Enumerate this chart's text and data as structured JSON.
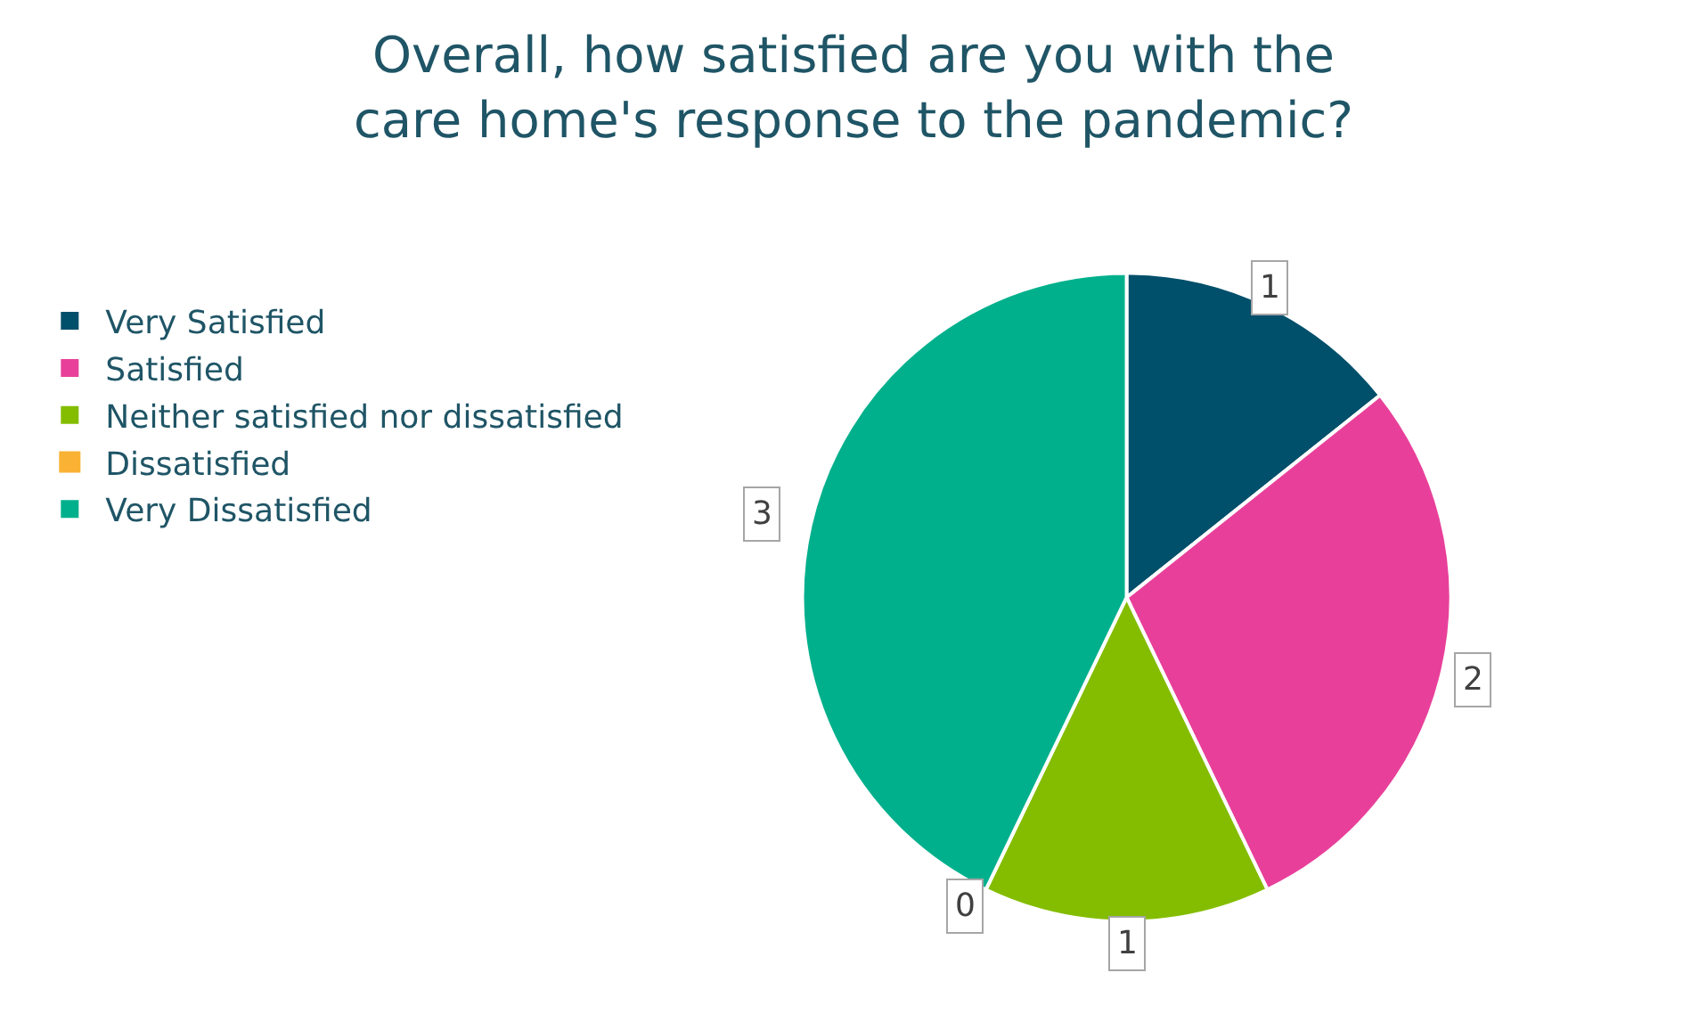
{
  "chart_data": {
    "type": "pie",
    "title": "Overall, how satisfied are you with the care home's response to the pandemic?",
    "categories": [
      "Very Satisfied",
      "Satisfied",
      "Neither satisfied nor dissatisfied",
      "Dissatisfied",
      "Very Dissatisfied"
    ],
    "values": [
      1,
      2,
      1,
      0,
      3
    ],
    "colors": [
      "#004f6b",
      "#e8409a",
      "#84bd00",
      "#f9b233",
      "#00b08c"
    ],
    "value_labels": [
      "1",
      "2",
      "1",
      "0",
      "3"
    ],
    "legend": "left"
  }
}
